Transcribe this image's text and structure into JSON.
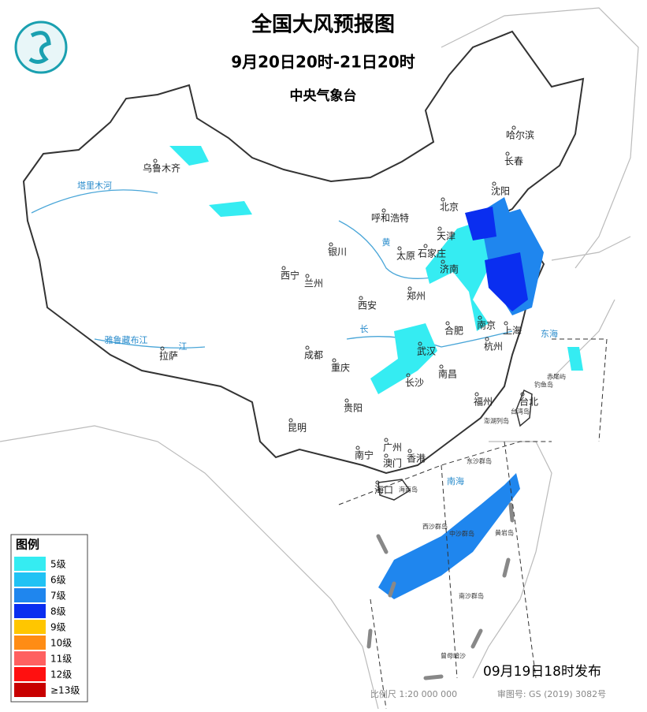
{
  "header": {
    "title": "全国大风预报图",
    "period": "9月20日20时-21日20时",
    "issuer": "中央气象台"
  },
  "cities": [
    "乌鲁木齐",
    "哈尔滨",
    "长春",
    "沈阳",
    "北京",
    "天津",
    "呼和浩特",
    "石家庄",
    "太原",
    "济南",
    "银川",
    "西宁",
    "兰州",
    "西安",
    "郑州",
    "合肥",
    "南京",
    "上海",
    "杭州",
    "武汉",
    "成都",
    "重庆",
    "拉萨",
    "长沙",
    "南昌",
    "贵阳",
    "福州",
    "台北",
    "昆明",
    "南宁",
    "广州",
    "澳门",
    "香港",
    "海口"
  ],
  "places": [
    "海南岛",
    "台湾岛",
    "钓鱼岛",
    "赤尾屿",
    "澎湖列岛",
    "东沙群岛",
    "西沙群岛",
    "中沙群岛",
    "黄岩岛",
    "南沙群岛",
    "曾母暗沙"
  ],
  "waters": [
    "东海",
    "南海",
    "黄",
    "长",
    "江",
    "塔里木河",
    "雅鲁藏布江"
  ],
  "legend": {
    "title": "图例",
    "items": [
      {
        "label": "5级",
        "color": "#35ecf2"
      },
      {
        "label": "6级",
        "color": "#21c2f4"
      },
      {
        "label": "7级",
        "color": "#1f86ee"
      },
      {
        "label": "8级",
        "color": "#0a2ef0"
      },
      {
        "label": "9级",
        "color": "#ffc600"
      },
      {
        "label": "10级",
        "color": "#ff8c14"
      },
      {
        "label": "11级",
        "color": "#ff6060"
      },
      {
        "label": "12级",
        "color": "#ff1010"
      },
      {
        "label": "≥13级",
        "color": "#c80000"
      }
    ]
  },
  "footer": {
    "release": "09月19日18时发布",
    "scale": "比例尺 1:20 000 000",
    "approval": "审图号: GS (2019) 3082号"
  }
}
